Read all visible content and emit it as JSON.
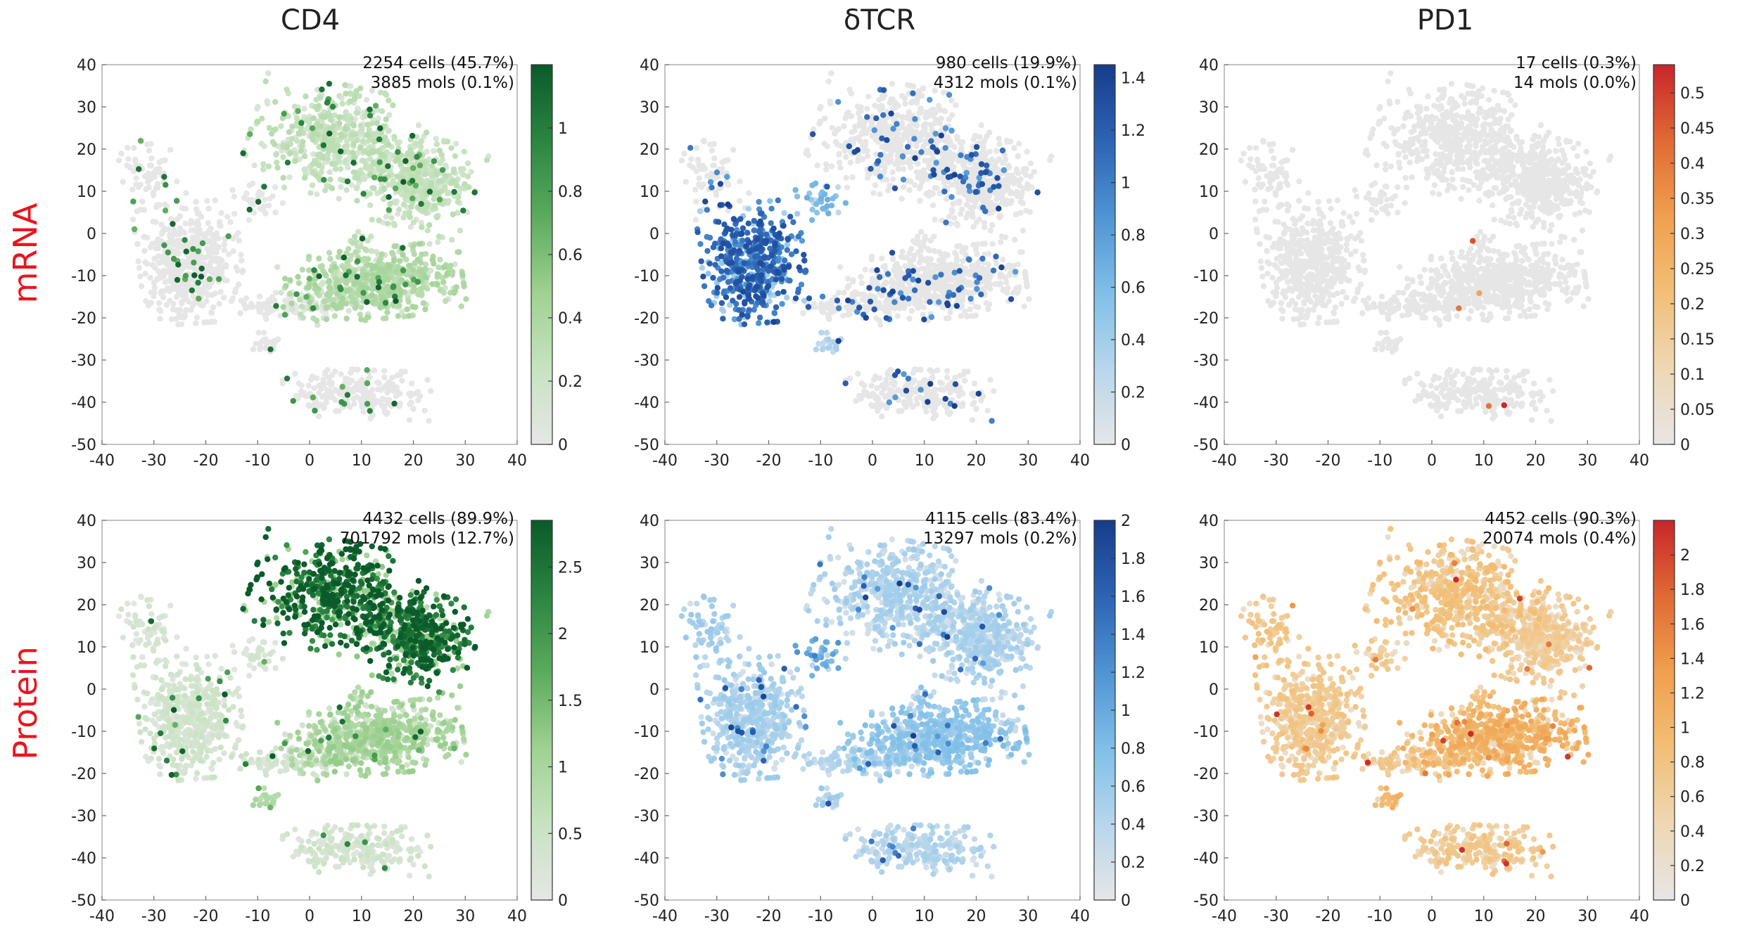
{
  "figure": {
    "column_titles": [
      "CD4",
      "δTCR",
      "PD1"
    ],
    "row_labels": [
      "mRNA",
      "Protein"
    ],
    "row_label_color": "#e8161e",
    "background_cell_color": "#e6e6e6"
  },
  "colormaps": {
    "green": [
      "#e6e6e6",
      "#c7e3c0",
      "#9fd192",
      "#5bab5d",
      "#2b8541",
      "#0a5a2a"
    ],
    "blue": [
      "#e6e6e6",
      "#b7d6ec",
      "#7fbfe8",
      "#4f94d4",
      "#2d63b3",
      "#163d8c"
    ],
    "orange": [
      "#e6e6e6",
      "#efd7b4",
      "#f2bf76",
      "#f0a04e",
      "#e06a34",
      "#c8262b"
    ]
  },
  "chart_data": [
    {
      "type": "scatter",
      "row": 0,
      "col": 0,
      "colormap": "green",
      "title": "CD4",
      "row_label": "mRNA",
      "annotation": [
        "2254 cells (45.7%)",
        "3885 mols (0.1%)"
      ],
      "xlim": [
        -40,
        40
      ],
      "ylim": [
        -50,
        40
      ],
      "xticks": [
        "-40",
        "-30",
        "-20",
        "-10",
        "0",
        "10",
        "20",
        "30",
        "40"
      ],
      "yticks": [
        "40",
        "30",
        "20",
        "10",
        "0",
        "-10",
        "-20",
        "-30",
        "-40",
        "-50"
      ],
      "colorbar": {
        "range": [
          0,
          1.2
        ],
        "ticks": [
          "1",
          "0.8",
          "0.6",
          "0.4",
          "0.2",
          "0"
        ]
      },
      "cluster_means": {
        "A": 0.22,
        "B": 0.2,
        "C": 0.0,
        "D": 0.3,
        "E": 0.01,
        "F": 0.0,
        "G": 0.0,
        "H": 0.0,
        "I": 0.02,
        "J": 0.22
      },
      "hot_fraction": 0.05
    },
    {
      "type": "scatter",
      "row": 0,
      "col": 1,
      "colormap": "blue",
      "title": "δTCR",
      "row_label": "mRNA",
      "annotation": [
        "980 cells (19.9%)",
        "4312 mols (0.1%)"
      ],
      "xlim": [
        -40,
        40
      ],
      "ylim": [
        -50,
        40
      ],
      "xticks": [
        "-40",
        "-30",
        "-20",
        "-10",
        "0",
        "10",
        "20",
        "30",
        "40"
      ],
      "yticks": [
        "40",
        "30",
        "20",
        "10",
        "0",
        "-10",
        "-20",
        "-30",
        "-40",
        "-50"
      ],
      "colorbar": {
        "range": [
          0,
          1.45
        ],
        "ticks": [
          "1.4",
          "1.2",
          "1",
          "0.8",
          "0.6",
          "0.4",
          "0.2",
          "0"
        ]
      },
      "cluster_means": {
        "A": 0.0,
        "B": 0.0,
        "C": 0.75,
        "D": 0.0,
        "E": 0.0,
        "F": 0.0,
        "G": 0.0,
        "H": 0.4,
        "I": 0.2,
        "J": 0.0
      },
      "hot_fraction": 0.1
    },
    {
      "type": "scatter",
      "row": 0,
      "col": 2,
      "colormap": "orange",
      "title": "PD1",
      "row_label": "mRNA",
      "annotation": [
        "17 cells (0.3%)",
        "14 mols (0.0%)"
      ],
      "xlim": [
        -40,
        40
      ],
      "ylim": [
        -50,
        40
      ],
      "xticks": [
        "-40",
        "-30",
        "-20",
        "-10",
        "0",
        "10",
        "20",
        "30",
        "40"
      ],
      "yticks": [
        "40",
        "30",
        "20",
        "10",
        "0",
        "-10",
        "-20",
        "-30",
        "-40",
        "-50"
      ],
      "colorbar": {
        "range": [
          0,
          0.54
        ],
        "ticks": [
          "0.5",
          "0.45",
          "0.4",
          "0.35",
          "0.3",
          "0.25",
          "0.2",
          "0.15",
          "0.1",
          "0.05",
          "0"
        ]
      },
      "cluster_means": {
        "A": 0.0,
        "B": 0.0,
        "C": 0.0,
        "D": 0.0,
        "E": 0.0,
        "F": 0.0,
        "G": 0.0,
        "H": 0.0,
        "I": 0.0,
        "J": 0.0
      },
      "hot_fraction": 0.003
    },
    {
      "type": "scatter",
      "row": 1,
      "col": 0,
      "colormap": "green",
      "title": "CD4",
      "row_label": "Protein",
      "annotation": [
        "4432 cells (89.9%)",
        "701792 mols (12.7%)"
      ],
      "xlim": [
        -40,
        40
      ],
      "ylim": [
        -50,
        40
      ],
      "xticks": [
        "-40",
        "-30",
        "-20",
        "-10",
        "0",
        "10",
        "20",
        "30",
        "40"
      ],
      "yticks": [
        "40",
        "30",
        "20",
        "10",
        "0",
        "-10",
        "-20",
        "-30",
        "-40",
        "-50"
      ],
      "colorbar": {
        "range": [
          0,
          2.85
        ],
        "ticks": [
          "2.5",
          "2",
          "1.5",
          "1",
          "0.5",
          "0"
        ]
      },
      "cluster_means": {
        "A": 0.93,
        "B": 0.9,
        "C": 0.12,
        "D": 0.35,
        "E": 0.12,
        "F": 0.12,
        "G": 0.1,
        "H": 0.1,
        "I": 0.3,
        "J": 0.35
      },
      "hot_fraction": 0.02
    },
    {
      "type": "scatter",
      "row": 1,
      "col": 1,
      "colormap": "blue",
      "title": "δTCR",
      "row_label": "Protein",
      "annotation": [
        "4115 cells (83.4%)",
        "13297 mols (0.2%)"
      ],
      "xlim": [
        -40,
        40
      ],
      "ylim": [
        -50,
        40
      ],
      "xticks": [
        "-40",
        "-30",
        "-20",
        "-10",
        "0",
        "10",
        "20",
        "30",
        "40"
      ],
      "yticks": [
        "40",
        "30",
        "20",
        "10",
        "0",
        "-10",
        "-20",
        "-30",
        "-40",
        "-50"
      ],
      "colorbar": {
        "range": [
          0,
          2.0
        ],
        "ticks": [
          "2",
          "1.8",
          "1.6",
          "1.4",
          "1.2",
          "1",
          "0.8",
          "0.6",
          "0.4",
          "0.2",
          "0"
        ]
      },
      "cluster_means": {
        "A": 0.22,
        "B": 0.22,
        "C": 0.24,
        "D": 0.33,
        "E": 0.2,
        "F": 0.2,
        "G": 0.25,
        "H": 0.5,
        "I": 0.26,
        "J": 0.3
      },
      "hot_fraction": 0.03
    },
    {
      "type": "scatter",
      "row": 1,
      "col": 2,
      "colormap": "orange",
      "title": "PD1",
      "row_label": "Protein",
      "annotation": [
        "4452 cells (90.3%)",
        "20074 mols (0.4%)"
      ],
      "xlim": [
        -40,
        40
      ],
      "ylim": [
        -50,
        40
      ],
      "xticks": [
        "-40",
        "-30",
        "-20",
        "-10",
        "0",
        "10",
        "20",
        "30",
        "40"
      ],
      "yticks": [
        "40",
        "30",
        "20",
        "10",
        "0",
        "-10",
        "-20",
        "-30",
        "-40",
        "-50"
      ],
      "colorbar": {
        "range": [
          0,
          2.2
        ],
        "ticks": [
          "2",
          "1.8",
          "1.6",
          "1.4",
          "1.2",
          "1",
          "0.8",
          "0.6",
          "0.4",
          "0.2",
          "0"
        ]
      },
      "cluster_means": {
        "A": 0.35,
        "B": 0.28,
        "C": 0.3,
        "D": 0.45,
        "E": 0.3,
        "F": 0.3,
        "G": 0.32,
        "H": 0.3,
        "I": 0.42,
        "J": 0.4
      },
      "hot_fraction": 0.02
    }
  ],
  "tsne_clusters": [
    {
      "id": "A",
      "cx": 5,
      "cy": 22,
      "sx": 7.5,
      "sy": 6,
      "n": 560,
      "rot": -0.25
    },
    {
      "id": "B",
      "cx": 21,
      "cy": 12,
      "sx": 5,
      "sy": 5,
      "n": 420,
      "rot": -0.3
    },
    {
      "id": "C",
      "cx": -23,
      "cy": -7,
      "sx": 4.5,
      "sy": 6.5,
      "n": 520,
      "rot": 0.1
    },
    {
      "id": "D",
      "cx": 12,
      "cy": -12,
      "sx": 8,
      "sy": 3.8,
      "n": 620,
      "rot": 0.12
    },
    {
      "id": "E",
      "cx": -4,
      "cy": -17,
      "sx": 5,
      "sy": 1.4,
      "n": 110,
      "rot": 0.05
    },
    {
      "id": "F",
      "cx": 9,
      "cy": -38,
      "sx": 6.5,
      "sy": 2.6,
      "n": 230,
      "rot": -0.05
    },
    {
      "id": "G",
      "cx": -31,
      "cy": 14,
      "sx": 2.8,
      "sy": 4.5,
      "n": 70,
      "rot": 0.2
    },
    {
      "id": "H",
      "cx": -10,
      "cy": 8,
      "sx": 2.2,
      "sy": 2.2,
      "n": 35,
      "rot": 0
    },
    {
      "id": "I",
      "cx": -8,
      "cy": -26,
      "sx": 1.3,
      "sy": 1.5,
      "n": 22,
      "rot": 0
    },
    {
      "id": "J",
      "cx": 9,
      "cy": -4,
      "sx": 1.8,
      "sy": 2.0,
      "n": 28,
      "rot": 0
    }
  ]
}
